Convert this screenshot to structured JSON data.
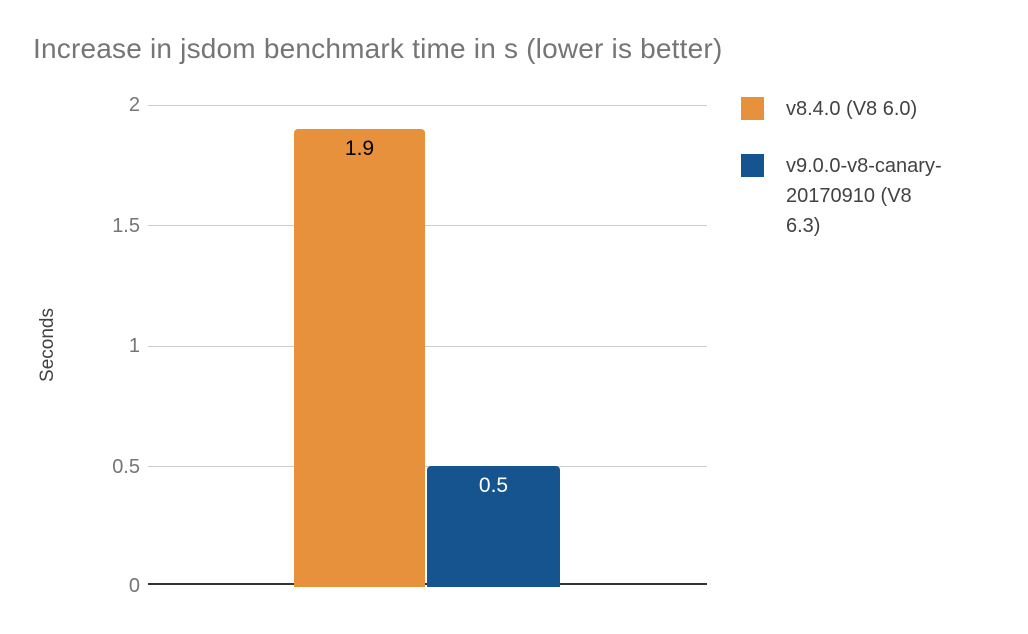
{
  "chart_data": {
    "type": "bar",
    "title": "Increase in jsdom benchmark time in s (lower is better)",
    "xlabel": "",
    "ylabel": "Seconds",
    "ylim": [
      0,
      2
    ],
    "ytick_labels": [
      "2",
      "1.5",
      "1",
      "0.5",
      "0"
    ],
    "grid": true,
    "legend_position": "right",
    "categories": [
      ""
    ],
    "series": [
      {
        "name": "v8.4.0 (V8 6.0)",
        "values": [
          1.9
        ],
        "data_label": "1.9",
        "color": "#E8913C"
      },
      {
        "name": "v9.0.0-v8-canary-20170910 (V8 6.3)",
        "values": [
          0.5
        ],
        "data_label": "0.5",
        "color": "#15548F"
      }
    ]
  },
  "legend": {
    "items": [
      {
        "label": "v8.4.0 (V8 6.0)",
        "lines": [
          "v8.4.0 (V8 6.0)"
        ],
        "swatch_color": "#E8913C"
      },
      {
        "label": "v9.0.0-v8-canary-20170910 (V8 6.3)",
        "lines": [
          "v9.0.0-v8-canary-",
          "20170910 (V8",
          "6.3)"
        ],
        "swatch_color": "#15548F"
      }
    ]
  },
  "style_colors": {
    "background": "#FFFFFF",
    "title_text": "#757575",
    "tick_text": "#757575",
    "axis_title_text": "#424242",
    "legend_text": "#424242",
    "gridline": "#CCCCCC",
    "axis_line": "#333333",
    "bar_label_dark": "#000000",
    "bar_label_light": "#FFFFFF"
  }
}
